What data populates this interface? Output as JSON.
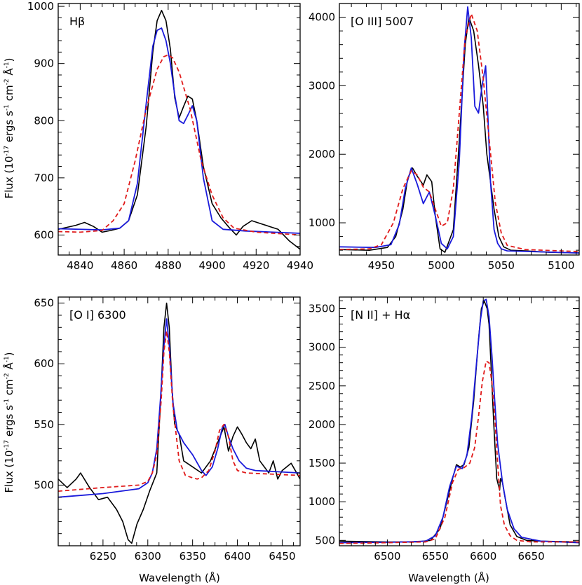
{
  "figure": {
    "ylabel_upper": "Flux (10^-17 ergs s^-1 cm^-2 Å^-1)",
    "ylabel_lower": "Flux (10^-17 ergs s^-1 cm^-2 Å^-1)",
    "xlabel_left": "Wavelength (Å)",
    "xlabel_right": "Wavelength (Å)",
    "colors": {
      "data": "#000000",
      "model_solid": "#1a1adb",
      "model_dashed": "#e01b1b",
      "frame": "#000000"
    }
  },
  "chart_data": [
    {
      "type": "line",
      "title": "Hβ",
      "xlim": [
        4830,
        4940
      ],
      "ylim": [
        565,
        1005
      ],
      "xticks": [
        4840,
        4860,
        4880,
        4900,
        4920,
        4940
      ],
      "yticks": [
        600,
        700,
        800,
        900,
        1000
      ],
      "series": [
        {
          "style": "black-solid",
          "x": [
            4830,
            4838,
            4842,
            4846,
            4850,
            4854,
            4858,
            4862,
            4866,
            4870,
            4873,
            4875,
            4877,
            4879,
            4881,
            4883,
            4885,
            4887,
            4889,
            4891,
            4893,
            4896,
            4900,
            4904,
            4908,
            4911,
            4914,
            4918,
            4922,
            4926,
            4930,
            4935,
            4940
          ],
          "y": [
            610,
            617,
            622,
            615,
            605,
            608,
            612,
            625,
            670,
            790,
            920,
            975,
            993,
            975,
            925,
            840,
            805,
            825,
            843,
            838,
            800,
            720,
            655,
            630,
            612,
            600,
            615,
            625,
            620,
            615,
            610,
            590,
            575
          ]
        },
        {
          "style": "blue-solid",
          "x": [
            4830,
            4850,
            4858,
            4862,
            4866,
            4870,
            4873,
            4875,
            4877,
            4879,
            4881,
            4883,
            4885,
            4887,
            4889,
            4891,
            4893,
            4896,
            4900,
            4905,
            4915,
            4940
          ],
          "y": [
            611,
            609,
            612,
            625,
            690,
            830,
            930,
            958,
            962,
            940,
            900,
            845,
            800,
            795,
            810,
            826,
            800,
            700,
            625,
            610,
            607,
            603
          ]
        },
        {
          "style": "red-dashed",
          "x": [
            4830,
            4840,
            4850,
            4855,
            4860,
            4865,
            4870,
            4875,
            4878,
            4880,
            4882,
            4885,
            4890,
            4895,
            4900,
            4905,
            4910,
            4920,
            4940
          ],
          "y": [
            606,
            605,
            608,
            625,
            655,
            730,
            820,
            890,
            912,
            915,
            910,
            885,
            820,
            730,
            670,
            630,
            612,
            605,
            600
          ]
        }
      ]
    },
    {
      "type": "line",
      "title": "[O III] 5007",
      "xlim": [
        4915,
        5115
      ],
      "ylim": [
        530,
        4200
      ],
      "xticks": [
        4950,
        5000,
        5050,
        5100
      ],
      "yticks": [
        1000,
        2000,
        3000,
        4000
      ],
      "series": [
        {
          "style": "black-solid",
          "x": [
            4915,
            4940,
            4955,
            4962,
            4968,
            4972,
            4976,
            4980,
            4985,
            4988,
            4992,
            4995,
            4999,
            5003,
            5010,
            5015,
            5020,
            5023,
            5027,
            5031,
            5035,
            5038,
            5041,
            5044,
            5048,
            5052,
            5058,
            5070,
            5090,
            5115
          ],
          "y": [
            610,
            600,
            640,
            800,
            1200,
            1650,
            1800,
            1680,
            1550,
            1700,
            1600,
            1100,
            620,
            570,
            900,
            2200,
            3600,
            4000,
            3800,
            3300,
            2700,
            2000,
            1600,
            1200,
            800,
            650,
            600,
            590,
            570,
            560
          ]
        },
        {
          "style": "blue-solid",
          "x": [
            4915,
            4945,
            4958,
            4965,
            4970,
            4975,
            4980,
            4985,
            4990,
            4995,
            5000,
            5005,
            5010,
            5015,
            5019,
            5022,
            5025,
            5028,
            5031,
            5034,
            5037,
            5039,
            5041,
            5044,
            5047,
            5050,
            5055,
            5075,
            5115
          ],
          "y": [
            650,
            640,
            680,
            980,
            1500,
            1800,
            1560,
            1280,
            1450,
            1100,
            700,
            620,
            800,
            1900,
            3500,
            4150,
            3700,
            2700,
            2600,
            3000,
            3290,
            2500,
            1600,
            900,
            700,
            620,
            590,
            580,
            560
          ]
        },
        {
          "style": "red-dashed",
          "x": [
            4915,
            4940,
            4950,
            4960,
            4968,
            4975,
            4980,
            4985,
            4990,
            4995,
            5000,
            5005,
            5010,
            5015,
            5020,
            5025,
            5030,
            5035,
            5040,
            5045,
            5050,
            5055,
            5070,
            5115
          ],
          "y": [
            610,
            620,
            680,
            1000,
            1500,
            1760,
            1700,
            1520,
            1450,
            1200,
            950,
            1000,
            1500,
            2600,
            3700,
            4050,
            3800,
            3100,
            2200,
            1300,
            850,
            670,
            610,
            580
          ]
        }
      ]
    },
    {
      "type": "line",
      "title": "[O I] 6300",
      "xlim": [
        6200,
        6470
      ],
      "ylim": [
        450,
        655
      ],
      "xticks": [
        6250,
        6300,
        6350,
        6400,
        6450
      ],
      "yticks": [
        500,
        550,
        600,
        650
      ],
      "series": [
        {
          "style": "black-solid",
          "x": [
            6200,
            6210,
            6220,
            6225,
            6235,
            6245,
            6255,
            6265,
            6272,
            6278,
            6282,
            6288,
            6295,
            6302,
            6310,
            6315,
            6318,
            6321,
            6324,
            6327,
            6330,
            6335,
            6340,
            6350,
            6360,
            6370,
            6378,
            6385,
            6390,
            6395,
            6400,
            6405,
            6410,
            6415,
            6420,
            6425,
            6430,
            6435,
            6440,
            6445,
            6450,
            6460,
            6470
          ],
          "y": [
            505,
            498,
            505,
            510,
            498,
            488,
            490,
            480,
            470,
            455,
            452,
            468,
            480,
            495,
            510,
            580,
            630,
            650,
            630,
            580,
            550,
            542,
            520,
            515,
            510,
            520,
            535,
            548,
            528,
            540,
            548,
            542,
            535,
            530,
            538,
            520,
            515,
            510,
            520,
            505,
            512,
            518,
            505
          ]
        },
        {
          "style": "blue-solid",
          "x": [
            6200,
            6250,
            6290,
            6300,
            6305,
            6310,
            6314,
            6318,
            6321,
            6324,
            6328,
            6333,
            6340,
            6350,
            6360,
            6365,
            6372,
            6378,
            6383,
            6386,
            6390,
            6395,
            6402,
            6410,
            6420,
            6470
          ],
          "y": [
            490,
            493,
            497,
            502,
            510,
            530,
            570,
            615,
            637,
            615,
            568,
            545,
            535,
            525,
            512,
            508,
            515,
            530,
            547,
            550,
            540,
            530,
            520,
            514,
            512,
            510
          ]
        },
        {
          "style": "red-dashed",
          "x": [
            6200,
            6250,
            6290,
            6300,
            6305,
            6310,
            6315,
            6318,
            6321,
            6324,
            6328,
            6335,
            6342,
            6350,
            6355,
            6360,
            6368,
            6375,
            6380,
            6385,
            6390,
            6395,
            6400,
            6410,
            6470
          ],
          "y": [
            495,
            498,
            500,
            503,
            510,
            525,
            570,
            610,
            627,
            610,
            565,
            520,
            508,
            506,
            505,
            506,
            512,
            528,
            545,
            550,
            540,
            520,
            512,
            510,
            508
          ]
        }
      ]
    },
    {
      "type": "line",
      "title": "[N II] + Hα",
      "xlim": [
        6450,
        6700
      ],
      "ylim": [
        430,
        3650
      ],
      "xticks": [
        6500,
        6550,
        6600,
        6650
      ],
      "yticks": [
        500,
        1000,
        1500,
        2000,
        2500,
        3000,
        3500
      ],
      "series": [
        {
          "style": "black-solid",
          "x": [
            6450,
            6500,
            6530,
            6545,
            6555,
            6562,
            6568,
            6572,
            6576,
            6580,
            6585,
            6590,
            6595,
            6598,
            6601,
            6604,
            6606,
            6608,
            6611,
            6614,
            6617,
            6618,
            6620,
            6622,
            6625,
            6628,
            6635,
            6645,
            6660,
            6700
          ],
          "y": [
            490,
            480,
            480,
            500,
            650,
            1000,
            1300,
            1480,
            1450,
            1480,
            1700,
            2300,
            3100,
            3500,
            3600,
            3500,
            3300,
            2800,
            2000,
            1300,
            1150,
            1300,
            1250,
            1100,
            900,
            700,
            550,
            500,
            490,
            480
          ]
        },
        {
          "style": "blue-solid",
          "x": [
            6450,
            6500,
            6520,
            6540,
            6550,
            6558,
            6565,
            6572,
            6578,
            6583,
            6588,
            6593,
            6597,
            6600,
            6603,
            6606,
            6609,
            6612,
            6615,
            6620,
            6625,
            6632,
            6640,
            6660,
            6700
          ],
          "y": [
            470,
            475,
            480,
            490,
            560,
            800,
            1200,
            1460,
            1430,
            1600,
            2100,
            2800,
            3350,
            3600,
            3620,
            3400,
            2900,
            2300,
            1750,
            1250,
            900,
            650,
            540,
            490,
            470
          ]
        },
        {
          "style": "red-dashed",
          "x": [
            6450,
            6500,
            6540,
            6550,
            6560,
            6568,
            6574,
            6580,
            6586,
            6591,
            6595,
            6599,
            6603,
            6606,
            6609,
            6612,
            6615,
            6618,
            6622,
            6628,
            6635,
            6650,
            6700
          ],
          "y": [
            460,
            470,
            480,
            520,
            800,
            1250,
            1420,
            1440,
            1500,
            1700,
            2100,
            2550,
            2820,
            2800,
            2550,
            2100,
            1500,
            950,
            700,
            560,
            500,
            480,
            480
          ]
        }
      ]
    }
  ]
}
